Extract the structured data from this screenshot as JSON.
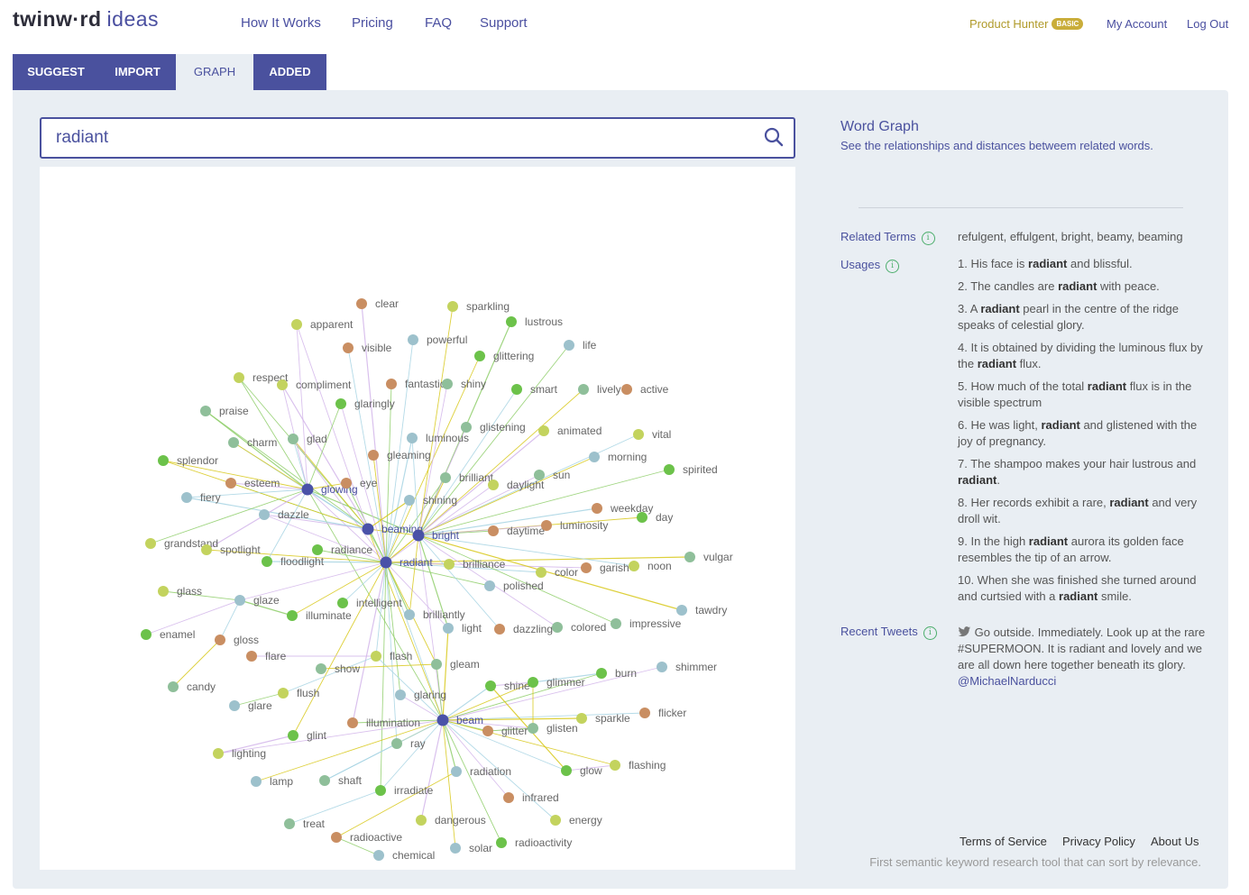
{
  "header": {
    "logo_text": "twinw·rd",
    "logo_suffix": "ideas",
    "nav": [
      "How It Works",
      "Pricing",
      "FAQ",
      "Support"
    ],
    "plan_name": "Product Hunter",
    "plan_badge": "BASIC",
    "my_account": "My Account",
    "log_out": "Log Out"
  },
  "tabs": [
    "SUGGEST",
    "IMPORT",
    "GRAPH",
    "ADDED"
  ],
  "active_tab": "GRAPH",
  "search": {
    "value": "radiant"
  },
  "side": {
    "title": "Word Graph",
    "subtitle": "See the relationships and distances betweem related words.",
    "related_label": "Related Terms",
    "related_terms": "refulgent, effulgent, bright, beamy, beaming",
    "usages_label": "Usages",
    "usages": [
      "1. His face is radiant and blissful.",
      "2. The candles are radiant with peace.",
      "3. A radiant pearl in the centre of the ridge speaks of celestial glory.",
      "4. It is obtained by dividing the luminous flux by the radiant flux.",
      "5. How much of the total radiant flux is in the visible spectrum",
      "6. He was light, radiant and glistened with the joy of pregnancy.",
      "7. The shampoo makes your hair lustrous and radiant.",
      "8. Her records exhibit a rare, radiant and very droll wit.",
      "9. In the high radiant aurora its golden face resembles the tip of an arrow.",
      "10. When she was finished she turned around and curtsied with a radiant smile."
    ],
    "tweets_label": "Recent Tweets",
    "tweet_text": "Go outside. Immediately. Look up at the rare #SUPERMOON. It is radiant and lovely and we are all down here together beneath its glory.",
    "tweet_handle": "@MichaelNarducci"
  },
  "footer": {
    "terms": "Terms of Service",
    "privacy": "Privacy Policy",
    "about": "About Us",
    "tagline": "First semantic keyword research tool that can sort by relevance."
  },
  "colors": {
    "accent": "#4a519e",
    "panel_bg": "#e9eef3",
    "node_colors": {
      "hub": "#4a52a8",
      "green": "#6cc24a",
      "lime": "#c3d35e",
      "blue": "#9dc1cc",
      "orange": "#c98e62",
      "sage": "#8fbf9a"
    },
    "edge_colors": [
      "#d8c81a",
      "#8fce6a",
      "#d3b6ea",
      "#a7d4e3"
    ]
  },
  "graph": {
    "nodes": [
      {
        "w": "radiant",
        "c": "hub"
      },
      {
        "w": "bright",
        "c": "hub"
      },
      {
        "w": "beaming",
        "c": "hub"
      },
      {
        "w": "glowing",
        "c": "hub"
      },
      {
        "w": "beam",
        "c": "hub"
      },
      {
        "w": "clear",
        "c": "orange"
      },
      {
        "w": "sparkling",
        "c": "lime"
      },
      {
        "w": "lustrous",
        "c": "green"
      },
      {
        "w": "apparent",
        "c": "lime"
      },
      {
        "w": "visible",
        "c": "orange"
      },
      {
        "w": "powerful",
        "c": "blue"
      },
      {
        "w": "glittering",
        "c": "green"
      },
      {
        "w": "life",
        "c": "blue"
      },
      {
        "w": "respect",
        "c": "lime"
      },
      {
        "w": "compliment",
        "c": "lime"
      },
      {
        "w": "fantastic",
        "c": "orange"
      },
      {
        "w": "shiny",
        "c": "sage"
      },
      {
        "w": "smart",
        "c": "green"
      },
      {
        "w": "lively",
        "c": "sage"
      },
      {
        "w": "active",
        "c": "orange"
      },
      {
        "w": "glaringly",
        "c": "green"
      },
      {
        "w": "praise",
        "c": "sage"
      },
      {
        "w": "glistening",
        "c": "sage"
      },
      {
        "w": "animated",
        "c": "lime"
      },
      {
        "w": "vital",
        "c": "lime"
      },
      {
        "w": "charm",
        "c": "sage"
      },
      {
        "w": "glad",
        "c": "sage"
      },
      {
        "w": "luminous",
        "c": "blue"
      },
      {
        "w": "gleaming",
        "c": "orange"
      },
      {
        "w": "morning",
        "c": "blue"
      },
      {
        "w": "splendor",
        "c": "green"
      },
      {
        "w": "spirited",
        "c": "green"
      },
      {
        "w": "brilliant",
        "c": "sage"
      },
      {
        "w": "sun",
        "c": "sage"
      },
      {
        "w": "esteem",
        "c": "orange"
      },
      {
        "w": "eye",
        "c": "orange"
      },
      {
        "w": "daylight",
        "c": "lime"
      },
      {
        "w": "fiery",
        "c": "blue"
      },
      {
        "w": "shining",
        "c": "blue"
      },
      {
        "w": "weekday",
        "c": "orange"
      },
      {
        "w": "day",
        "c": "green"
      },
      {
        "w": "dazzle",
        "c": "blue"
      },
      {
        "w": "daytime",
        "c": "orange"
      },
      {
        "w": "luminosity",
        "c": "orange"
      },
      {
        "w": "grandstand",
        "c": "lime"
      },
      {
        "w": "spotlight",
        "c": "lime"
      },
      {
        "w": "radiance",
        "c": "green"
      },
      {
        "w": "floodlight",
        "c": "green"
      },
      {
        "w": "vulgar",
        "c": "sage"
      },
      {
        "w": "brilliance",
        "c": "lime"
      },
      {
        "w": "garish",
        "c": "orange"
      },
      {
        "w": "noon",
        "c": "lime"
      },
      {
        "w": "color",
        "c": "lime"
      },
      {
        "w": "glass",
        "c": "lime"
      },
      {
        "w": "polished",
        "c": "blue"
      },
      {
        "w": "glaze",
        "c": "blue"
      },
      {
        "w": "intelligent",
        "c": "green"
      },
      {
        "w": "tawdry",
        "c": "blue"
      },
      {
        "w": "illuminate",
        "c": "green"
      },
      {
        "w": "brilliantly",
        "c": "blue"
      },
      {
        "w": "impressive",
        "c": "sage"
      },
      {
        "w": "enamel",
        "c": "green"
      },
      {
        "w": "gloss",
        "c": "orange"
      },
      {
        "w": "light",
        "c": "blue"
      },
      {
        "w": "dazzling",
        "c": "orange"
      },
      {
        "w": "colored",
        "c": "sage"
      },
      {
        "w": "flare",
        "c": "orange"
      },
      {
        "w": "flash",
        "c": "lime"
      },
      {
        "w": "show",
        "c": "sage"
      },
      {
        "w": "gleam",
        "c": "sage"
      },
      {
        "w": "shimmer",
        "c": "blue"
      },
      {
        "w": "burn",
        "c": "green"
      },
      {
        "w": "candy",
        "c": "sage"
      },
      {
        "w": "shine",
        "c": "green"
      },
      {
        "w": "glimmer",
        "c": "green"
      },
      {
        "w": "flush",
        "c": "lime"
      },
      {
        "w": "glaring",
        "c": "blue"
      },
      {
        "w": "glare",
        "c": "blue"
      },
      {
        "w": "flicker",
        "c": "orange"
      },
      {
        "w": "sparkle",
        "c": "lime"
      },
      {
        "w": "illumination",
        "c": "orange"
      },
      {
        "w": "glitter",
        "c": "orange"
      },
      {
        "w": "glisten",
        "c": "sage"
      },
      {
        "w": "glint",
        "c": "green"
      },
      {
        "w": "ray",
        "c": "sage"
      },
      {
        "w": "lighting",
        "c": "lime"
      },
      {
        "w": "radiation",
        "c": "blue"
      },
      {
        "w": "glow",
        "c": "green"
      },
      {
        "w": "flashing",
        "c": "lime"
      },
      {
        "w": "lamp",
        "c": "blue"
      },
      {
        "w": "shaft",
        "c": "sage"
      },
      {
        "w": "irradiate",
        "c": "green"
      },
      {
        "w": "infrared",
        "c": "orange"
      },
      {
        "w": "treat",
        "c": "sage"
      },
      {
        "w": "dangerous",
        "c": "lime"
      },
      {
        "w": "energy",
        "c": "lime"
      },
      {
        "w": "radioactive",
        "c": "orange"
      },
      {
        "w": "radioactivity",
        "c": "green"
      },
      {
        "w": "solar",
        "c": "blue"
      },
      {
        "w": "chemical",
        "c": "blue"
      }
    ]
  }
}
